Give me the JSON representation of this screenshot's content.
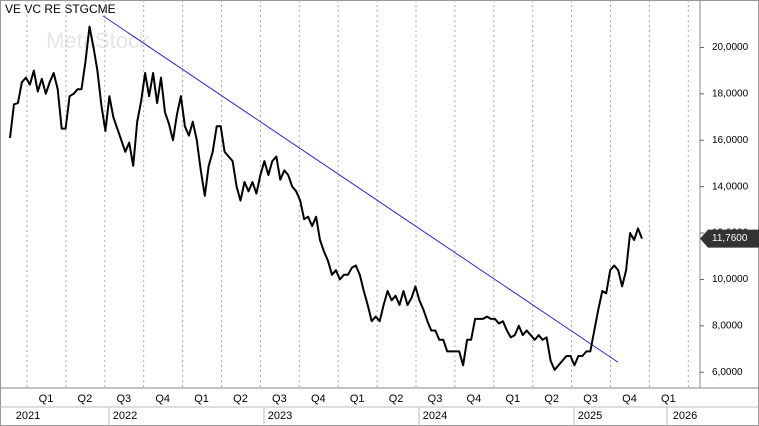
{
  "chart_data": {
    "type": "line",
    "title": "VE VC RE STGCME",
    "watermark": "MetaStock",
    "series": [
      {
        "color": "#000000",
        "values": [
          16.1,
          17.55,
          17.6,
          18.5,
          18.7,
          18.4,
          19.0,
          18.1,
          18.65,
          18.0,
          18.5,
          18.9,
          18.2,
          16.5,
          16.5,
          17.9,
          18.0,
          18.2,
          18.2,
          19.4,
          20.9,
          20.0,
          19.0,
          17.5,
          16.4,
          17.9,
          17.0,
          16.5,
          16.0,
          15.5,
          15.9,
          14.9,
          16.8,
          17.7,
          18.9,
          17.9,
          18.9,
          17.6,
          18.7,
          17.2,
          16.7,
          16.0,
          17.1,
          17.9,
          16.6,
          16.2,
          16.8,
          16.0,
          14.7,
          13.6,
          14.9,
          15.5,
          16.6,
          16.6,
          15.5,
          15.3,
          15.1,
          14.0,
          13.4,
          14.2,
          13.8,
          14.2,
          13.7,
          14.5,
          15.1,
          14.5,
          15.1,
          15.3,
          14.3,
          14.7,
          14.5,
          14.0,
          13.8,
          13.4,
          12.6,
          12.7,
          12.3,
          12.7,
          11.7,
          11.2,
          10.8,
          10.2,
          10.4,
          10.0,
          10.2,
          10.2,
          10.5,
          10.6,
          10.2,
          9.5,
          8.9,
          8.2,
          8.4,
          8.2,
          8.9,
          9.5,
          9.1,
          9.3,
          8.9,
          9.5,
          8.9,
          9.2,
          9.7,
          9.1,
          8.7,
          8.2,
          7.8,
          7.8,
          7.4,
          7.4,
          6.9,
          6.9,
          6.9,
          6.9,
          6.3,
          7.4,
          7.4,
          8.3,
          8.3,
          8.3,
          8.4,
          8.3,
          8.3,
          8.1,
          8.2,
          7.8,
          7.5,
          7.6,
          8.0,
          7.6,
          7.8,
          7.6,
          7.4,
          7.6,
          7.4,
          7.5,
          6.5,
          6.1,
          6.3,
          6.5,
          6.7,
          6.7,
          6.3,
          6.7,
          6.7,
          6.9,
          6.9,
          7.8,
          8.7,
          9.5,
          9.4,
          10.4,
          10.6,
          10.4,
          9.7,
          10.4,
          12.0,
          11.7,
          12.2,
          11.76
        ]
      }
    ],
    "trendline": {
      "color": "#2a2ad8",
      "values": [
        21.36,
        6.43
      ]
    },
    "quarter_labels": [
      "Q1",
      "Q2",
      "Q3",
      "Q4",
      "Q1",
      "Q2",
      "Q3",
      "Q4",
      "Q1",
      "Q2",
      "Q3",
      "Q4",
      "Q1",
      "Q2",
      "Q3",
      "Q4",
      "Q1"
    ],
    "year_labels": [
      "2021",
      "2022",
      "2023",
      "2024",
      "2025",
      "2026"
    ],
    "ylim": [
      5.45,
      21.7
    ],
    "yticks": [
      {
        "value": 6,
        "label": "6,0000"
      },
      {
        "value": 8,
        "label": "8,0000"
      },
      {
        "value": 10,
        "label": "10,0000"
      },
      {
        "value": 12,
        "label": "12,0000"
      },
      {
        "value": 14,
        "label": "14,0000"
      },
      {
        "value": 16,
        "label": "16,0000"
      },
      {
        "value": 18,
        "label": "18,0000"
      },
      {
        "value": 20,
        "label": "20,0000"
      }
    ],
    "y_marker": {
      "value": 11.76,
      "label": "11,7600"
    },
    "xgrid": true
  }
}
